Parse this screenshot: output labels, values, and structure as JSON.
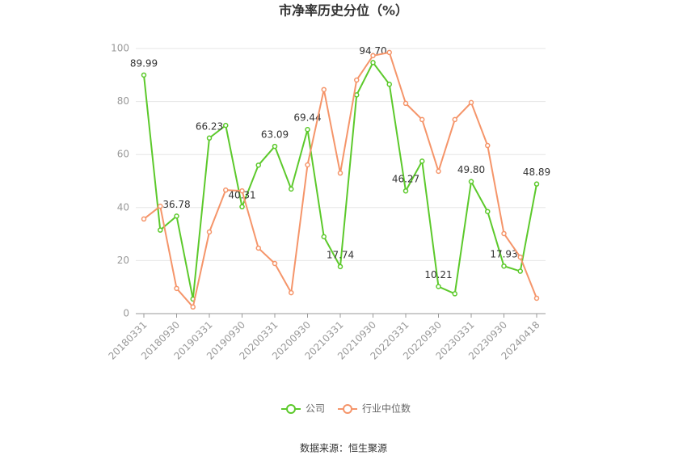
{
  "chart_data": {
    "type": "line",
    "title": "市净率历史分位（%）",
    "source": "数据来源：恒生聚源",
    "categories": [
      "20180331",
      null,
      "20180930",
      null,
      "20190331",
      null,
      "20190930",
      null,
      "20200331",
      null,
      "20200930",
      null,
      "20210331",
      null,
      "20210930",
      null,
      "20220331",
      null,
      "20220930",
      null,
      "20230331",
      null,
      "20230930",
      null,
      "20240418"
    ],
    "series": [
      {
        "name": "公司",
        "color": "#5cc92b",
        "values": [
          89.99,
          31.5,
          36.78,
          5.5,
          66.23,
          71,
          40.31,
          56,
          63.09,
          47,
          69.44,
          29,
          17.74,
          82.5,
          94.7,
          86.5,
          46.27,
          57.5,
          10.21,
          7.5,
          49.8,
          38.5,
          17.93,
          16,
          48.89
        ],
        "value_labels": [
          "89.99",
          null,
          "36.78",
          null,
          "66.23",
          null,
          "40.31",
          null,
          "63.09",
          null,
          "69.44",
          null,
          "17.74",
          null,
          "94.70",
          null,
          "46.27",
          null,
          "10.21",
          null,
          "49.80",
          null,
          "17.93",
          null,
          "48.89"
        ]
      },
      {
        "name": "行业中位数",
        "color": "#f5956a",
        "values": [
          35.7,
          40.5,
          9.5,
          2.5,
          30.8,
          46.6,
          46.3,
          24.7,
          18.9,
          7.9,
          56.1,
          84.5,
          53,
          88.1,
          97.3,
          98.5,
          79.3,
          73.2,
          53.7,
          73.2,
          79.6,
          63.4,
          30.2,
          21.3,
          5.8
        ]
      }
    ],
    "ylim": [
      0,
      100
    ],
    "yticks": [
      0,
      20,
      40,
      60,
      80,
      100
    ],
    "grid": true
  }
}
